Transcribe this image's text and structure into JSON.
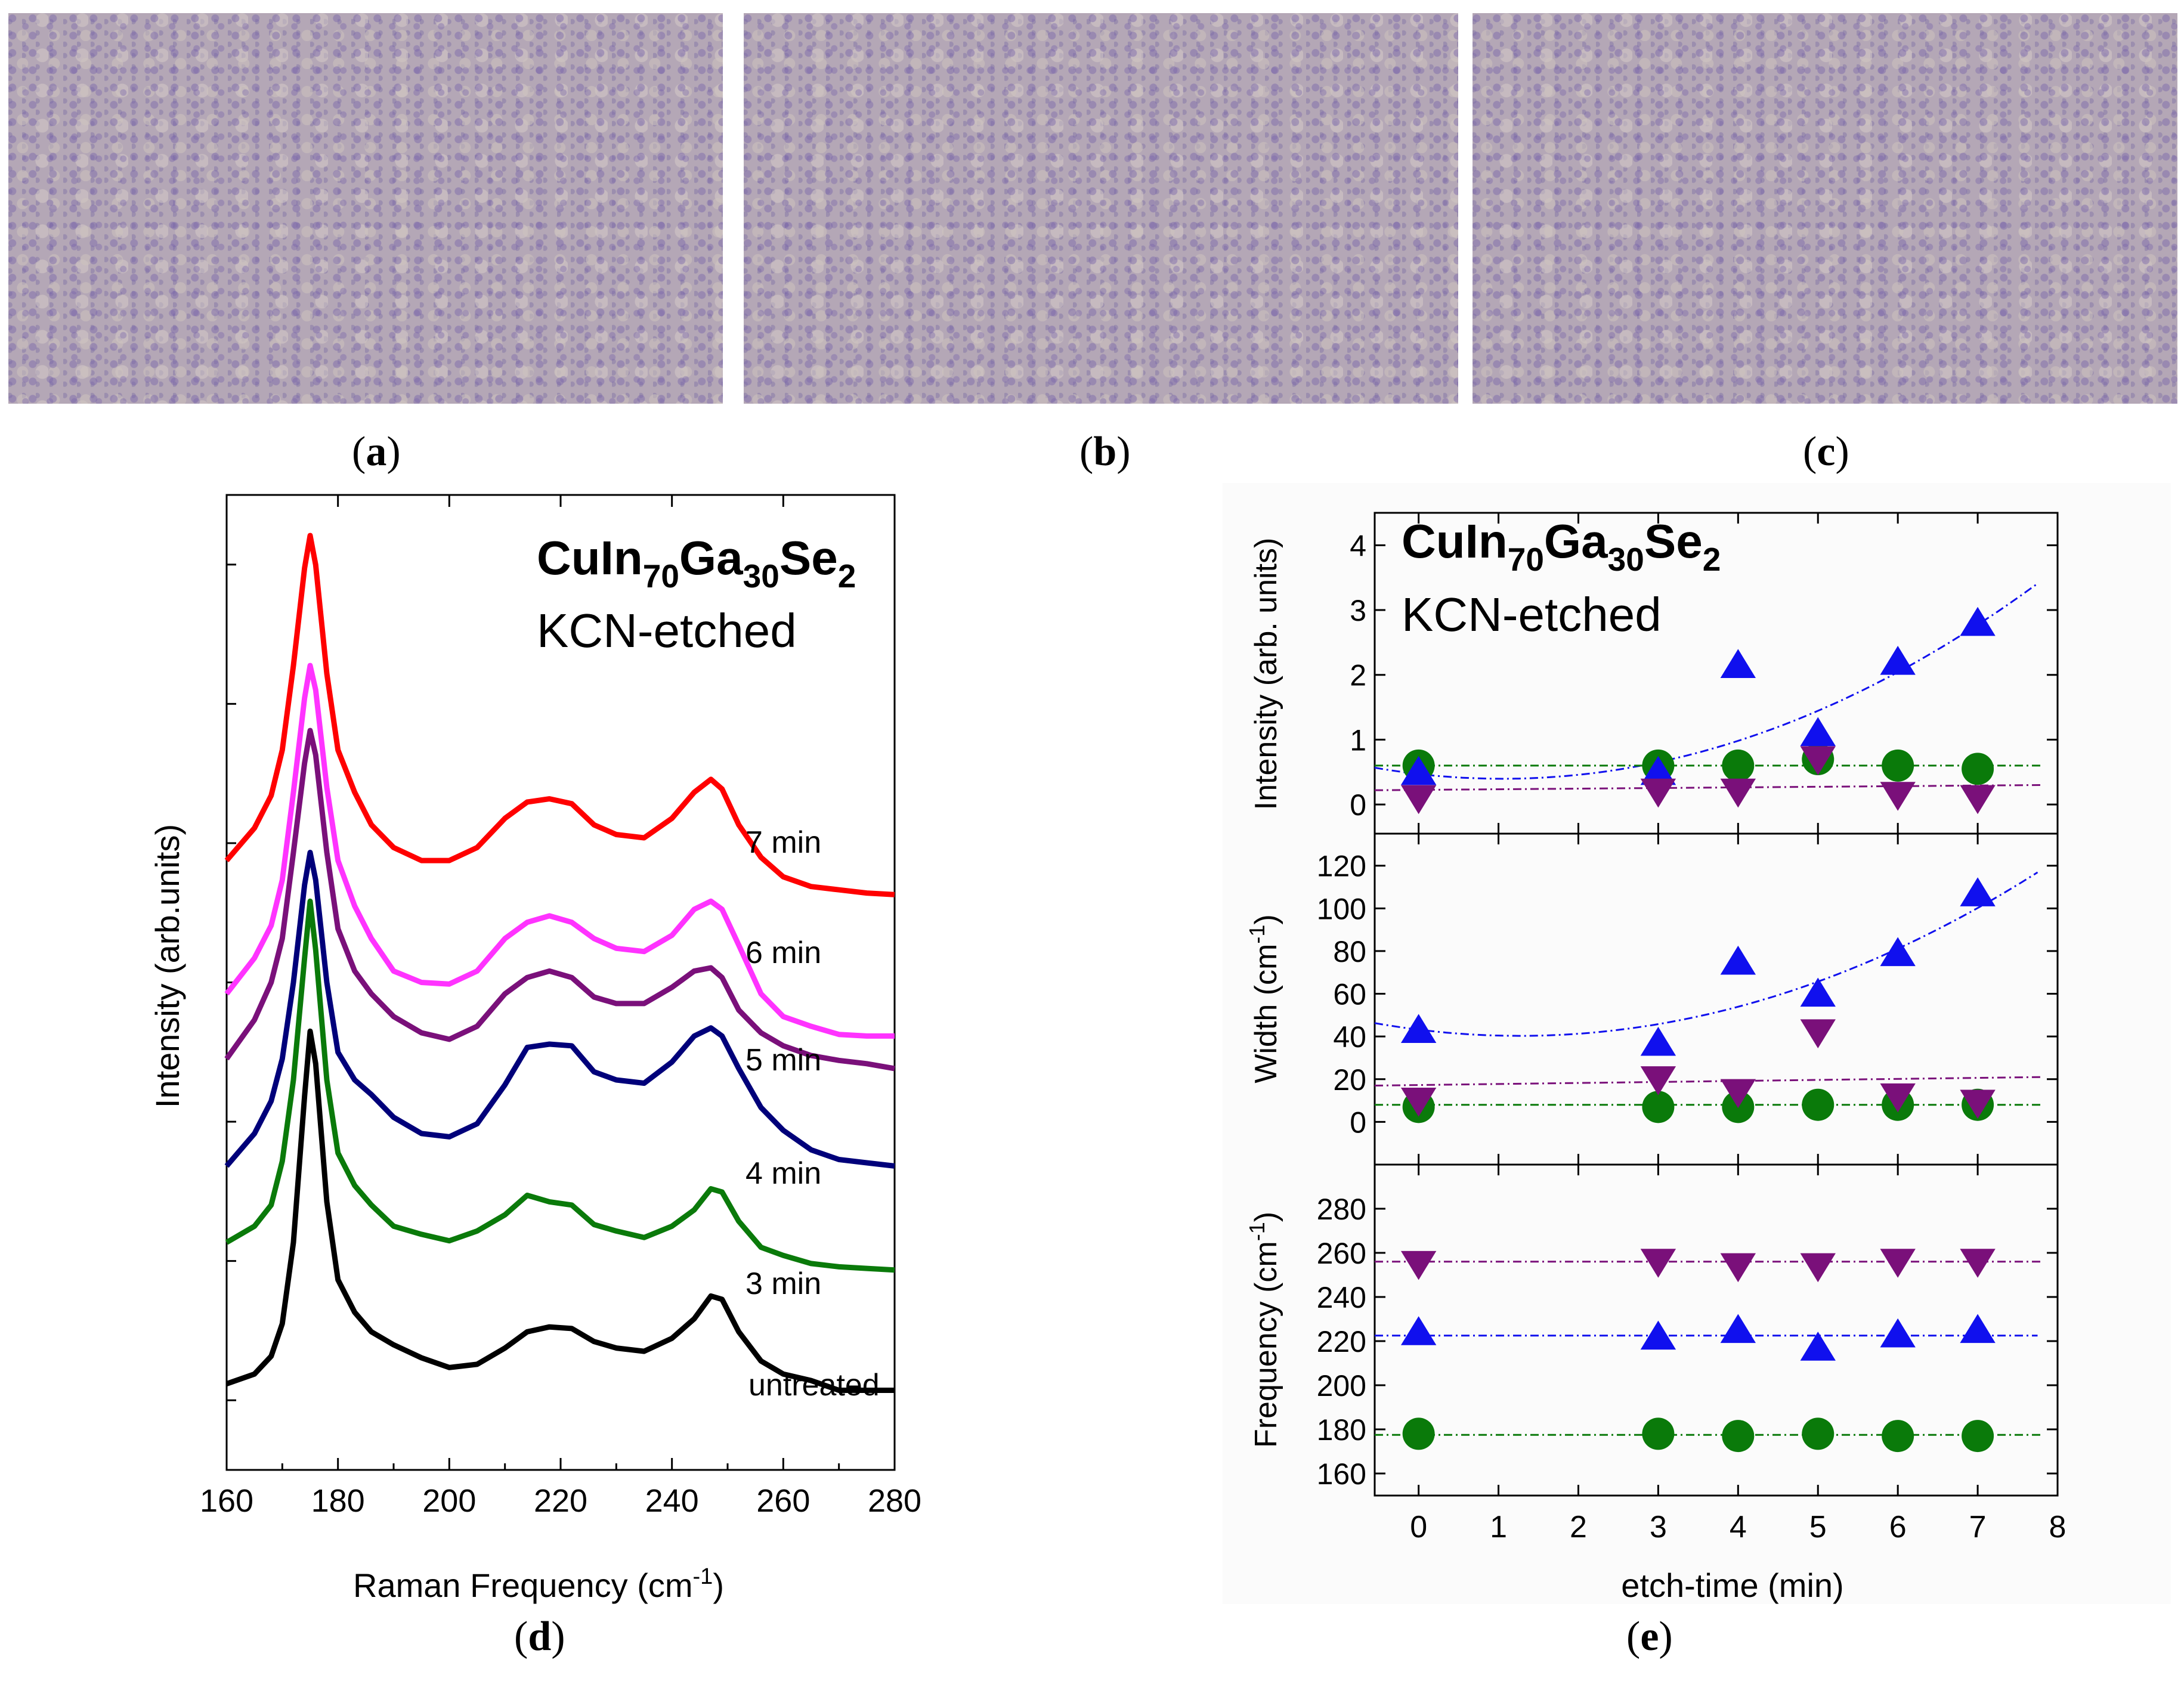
{
  "panels": {
    "a": "a",
    "b": "b",
    "c": "c",
    "d": "d",
    "e": "e"
  },
  "chart_data": [
    {
      "type": "line",
      "panel": "d",
      "title_main": "CuIn",
      "title_sub1": "70",
      "title_mid": "Ga",
      "title_sub2": "30",
      "title_end": "Se",
      "title_sub3": "2",
      "subtitle": "KCN-etched",
      "xlabel": "Raman Frequency (cm",
      "xlabel_sup": "-1",
      "xlabel_end": ")",
      "ylabel": "Intensity (arb.units)",
      "xlim": [
        160,
        280
      ],
      "x_ticks": [
        "160",
        "180",
        "200",
        "220",
        "240",
        "260",
        "280"
      ],
      "series": [
        {
          "name": "untreated",
          "color": "#000000",
          "x": [
            160,
            165,
            168,
            170,
            172,
            174,
            175,
            176,
            178,
            180,
            183,
            186,
            190,
            195,
            200,
            205,
            210,
            214,
            218,
            222,
            226,
            230,
            235,
            240,
            244,
            247,
            249,
            252,
            256,
            260,
            265,
            270,
            275,
            280
          ],
          "y": [
            0.08,
            0.14,
            0.25,
            0.45,
            0.95,
            1.85,
            2.25,
            2.05,
            1.2,
            0.72,
            0.52,
            0.4,
            0.32,
            0.24,
            0.18,
            0.2,
            0.3,
            0.4,
            0.43,
            0.42,
            0.34,
            0.3,
            0.28,
            0.36,
            0.48,
            0.62,
            0.6,
            0.4,
            0.22,
            0.14,
            0.1,
            0.04,
            0.04,
            0.04
          ]
        },
        {
          "name": "3 min",
          "color": "#0a7a0a",
          "x": [
            160,
            165,
            168,
            170,
            172,
            174,
            175,
            176,
            178,
            180,
            183,
            186,
            190,
            195,
            200,
            205,
            210,
            214,
            218,
            222,
            226,
            230,
            235,
            240,
            244,
            247,
            249,
            252,
            256,
            260,
            265,
            270,
            275,
            280
          ],
          "y": [
            0.95,
            1.05,
            1.18,
            1.45,
            1.95,
            2.7,
            3.05,
            2.75,
            1.95,
            1.5,
            1.3,
            1.18,
            1.05,
            1.0,
            0.96,
            1.02,
            1.12,
            1.24,
            1.2,
            1.18,
            1.06,
            1.02,
            0.98,
            1.05,
            1.15,
            1.28,
            1.26,
            1.08,
            0.92,
            0.87,
            0.82,
            0.8,
            0.79,
            0.78
          ]
        },
        {
          "name": "4 min",
          "color": "#00007a",
          "x": [
            160,
            165,
            168,
            170,
            172,
            174,
            175,
            176,
            178,
            180,
            183,
            186,
            190,
            195,
            200,
            205,
            210,
            214,
            218,
            222,
            226,
            230,
            235,
            240,
            244,
            247,
            249,
            252,
            256,
            260,
            265,
            270,
            275,
            280
          ],
          "y": [
            1.42,
            1.62,
            1.82,
            2.08,
            2.55,
            3.15,
            3.35,
            3.18,
            2.55,
            2.12,
            1.95,
            1.86,
            1.72,
            1.62,
            1.6,
            1.68,
            1.92,
            2.15,
            2.17,
            2.16,
            2.0,
            1.95,
            1.93,
            2.06,
            2.22,
            2.27,
            2.22,
            2.02,
            1.78,
            1.64,
            1.52,
            1.46,
            1.44,
            1.42
          ]
        },
        {
          "name": "5 min",
          "color": "#7a107a",
          "x": [
            160,
            165,
            168,
            170,
            172,
            174,
            175,
            176,
            178,
            180,
            183,
            186,
            190,
            195,
            200,
            205,
            210,
            214,
            218,
            222,
            226,
            230,
            235,
            240,
            244,
            247,
            249,
            252,
            256,
            260,
            265,
            270,
            275,
            280
          ],
          "y": [
            2.08,
            2.32,
            2.55,
            2.82,
            3.35,
            3.9,
            4.1,
            3.95,
            3.35,
            2.88,
            2.62,
            2.48,
            2.34,
            2.24,
            2.2,
            2.28,
            2.48,
            2.58,
            2.62,
            2.58,
            2.46,
            2.42,
            2.42,
            2.52,
            2.62,
            2.64,
            2.58,
            2.38,
            2.24,
            2.16,
            2.1,
            2.07,
            2.05,
            2.02
          ]
        },
        {
          "name": "6 min",
          "color": "#ff33ff",
          "x": [
            160,
            165,
            168,
            170,
            172,
            174,
            175,
            176,
            178,
            180,
            183,
            186,
            190,
            195,
            200,
            205,
            210,
            214,
            218,
            222,
            226,
            230,
            235,
            240,
            244,
            247,
            249,
            252,
            256,
            260,
            265,
            270,
            275,
            280
          ],
          "y": [
            2.48,
            2.7,
            2.9,
            3.18,
            3.72,
            4.3,
            4.5,
            4.35,
            3.75,
            3.3,
            3.02,
            2.82,
            2.62,
            2.55,
            2.54,
            2.62,
            2.82,
            2.92,
            2.96,
            2.92,
            2.82,
            2.76,
            2.74,
            2.84,
            3.0,
            3.05,
            3.0,
            2.78,
            2.48,
            2.34,
            2.28,
            2.23,
            2.22,
            2.22
          ]
        },
        {
          "name": "7 min",
          "color": "#ff0000",
          "x": [
            160,
            165,
            168,
            170,
            172,
            174,
            175,
            176,
            178,
            180,
            183,
            186,
            190,
            195,
            200,
            205,
            210,
            214,
            218,
            222,
            226,
            230,
            235,
            240,
            244,
            247,
            249,
            252,
            256,
            260,
            265,
            270,
            275,
            280
          ],
          "y": [
            3.3,
            3.5,
            3.7,
            3.98,
            4.5,
            5.1,
            5.3,
            5.12,
            4.45,
            3.98,
            3.72,
            3.52,
            3.38,
            3.3,
            3.3,
            3.38,
            3.56,
            3.66,
            3.68,
            3.65,
            3.52,
            3.46,
            3.44,
            3.56,
            3.72,
            3.8,
            3.74,
            3.52,
            3.32,
            3.2,
            3.14,
            3.12,
            3.1,
            3.09
          ]
        }
      ],
      "label_texts": [
        "7 min",
        "6 min",
        "5 min",
        "4 min",
        "3 min",
        "untreated"
      ]
    },
    {
      "type": "scatter",
      "panel": "e",
      "title_main": "CuIn",
      "title_sub1": "70",
      "title_mid": "Ga",
      "title_sub2": "30",
      "title_end": "Se",
      "title_sub3": "2",
      "subtitle": "KCN-etched",
      "xlabel": "etch-time (min)",
      "xlim": [
        -0.55,
        8
      ],
      "x_ticks": [
        "0",
        "1",
        "2",
        "3",
        "4",
        "5",
        "6",
        "7",
        "8"
      ],
      "colors": {
        "circle": "#0a7a0a",
        "up": "#1010ee",
        "down": "#7a107a"
      },
      "subplots": [
        {
          "ylabel": "Intensity (arb. units)",
          "ylim": [
            -0.45,
            4.5
          ],
          "y_ticks": [
            "0",
            "1",
            "2",
            "3",
            "4"
          ],
          "x": [
            0,
            3,
            4,
            5,
            6,
            7
          ],
          "circle": [
            0.6,
            0.6,
            0.6,
            0.7,
            0.6,
            0.55
          ],
          "up": [
            0.5,
            0.5,
            2.15,
            1.1,
            2.2,
            2.8
          ],
          "down": [
            0.1,
            0.2,
            0.2,
            0.7,
            0.15,
            0.1
          ],
          "fit_up": {
            "a": 0.067,
            "b": -0.14,
            "c": 0.47
          },
          "fit_circle": 0.6,
          "fit_down": {
            "start": 0.22,
            "end": 0.3
          }
        },
        {
          "ylabel": "Width (cm",
          "ylabel_sup": "-1",
          "ylabel_end": ")",
          "ylim": [
            -20,
            135
          ],
          "y_ticks": [
            "0",
            "20",
            "40",
            "60",
            "80",
            "100",
            "120"
          ],
          "x": [
            0,
            3,
            4,
            5,
            6,
            7
          ],
          "circle": [
            7,
            7,
            7,
            8,
            8,
            8
          ],
          "up": [
            43,
            37,
            75,
            60,
            79,
            107
          ],
          "down": [
            10,
            20,
            14,
            42,
            12,
            9
          ],
          "fit_up": {
            "a": 1.82,
            "b": -4.6,
            "c": 43.2
          },
          "fit_circle": 8,
          "fit_down": {
            "start": 17,
            "end": 21
          }
        },
        {
          "ylabel": "Frequency (cm",
          "ylabel_sup": "-1",
          "ylabel_end": ")",
          "ylim": [
            150,
            300
          ],
          "y_ticks": [
            "160",
            "180",
            "200",
            "220",
            "240",
            "260",
            "280"
          ],
          "x": [
            0,
            3,
            4,
            5,
            6,
            7
          ],
          "circle": [
            178,
            178,
            177,
            178,
            177,
            177
          ],
          "up": [
            224,
            222,
            225,
            217,
            223,
            225
          ],
          "down": [
            255,
            256,
            254,
            254,
            256,
            256
          ],
          "fit_up": {
            "a": 0,
            "b": 0,
            "c": 222.5
          },
          "fit_circle": 177.5,
          "fit_down": {
            "start": 256,
            "end": 256
          }
        }
      ]
    }
  ]
}
